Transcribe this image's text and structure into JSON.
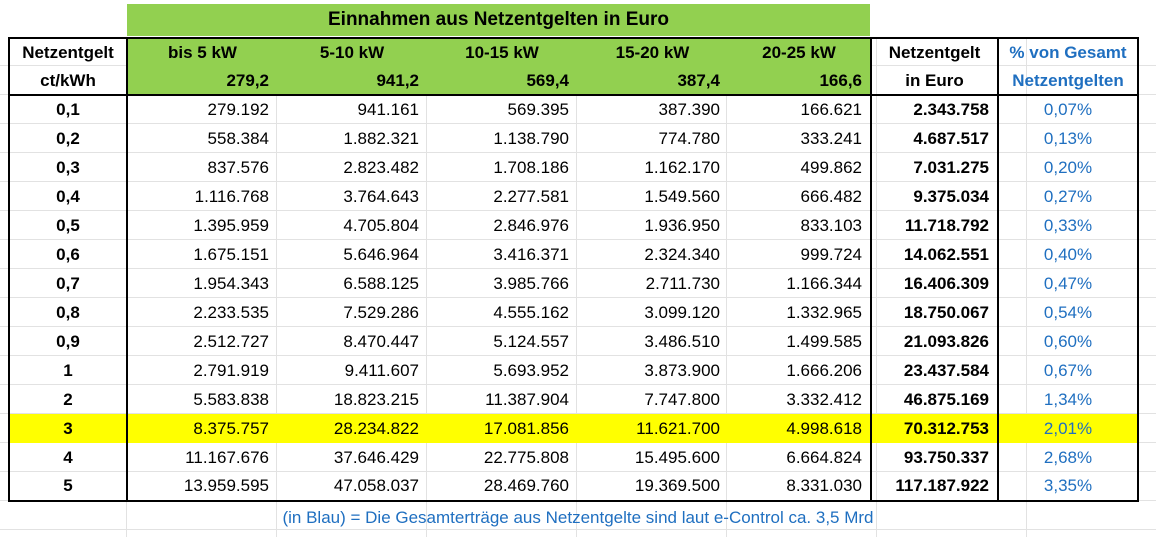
{
  "title": "Einnahmen aus Netzentgelten in Euro",
  "header": {
    "col1_line1": "Netzentgelt",
    "col1_line2": "ct/kWh",
    "groups": [
      {
        "label": "bis 5 kW",
        "value": "279,2"
      },
      {
        "label": "5-10 kW",
        "value": "941,2"
      },
      {
        "label": "10-15 kW",
        "value": "569,4"
      },
      {
        "label": "15-20 kW",
        "value": "387,4"
      },
      {
        "label": "20-25 kW",
        "value": "166,6"
      }
    ],
    "total_line1": "Netzentgelt",
    "total_line2": "in Euro",
    "pct_line1": "% von Gesamt",
    "pct_line2": "Netzentgelten"
  },
  "rows": [
    {
      "rate": "0,1",
      "v": [
        "279.192",
        "941.161",
        "569.395",
        "387.390",
        "166.621"
      ],
      "total": "2.343.758",
      "pct": "0,07%"
    },
    {
      "rate": "0,2",
      "v": [
        "558.384",
        "1.882.321",
        "1.138.790",
        "774.780",
        "333.241"
      ],
      "total": "4.687.517",
      "pct": "0,13%"
    },
    {
      "rate": "0,3",
      "v": [
        "837.576",
        "2.823.482",
        "1.708.186",
        "1.162.170",
        "499.862"
      ],
      "total": "7.031.275",
      "pct": "0,20%"
    },
    {
      "rate": "0,4",
      "v": [
        "1.116.768",
        "3.764.643",
        "2.277.581",
        "1.549.560",
        "666.482"
      ],
      "total": "9.375.034",
      "pct": "0,27%"
    },
    {
      "rate": "0,5",
      "v": [
        "1.395.959",
        "4.705.804",
        "2.846.976",
        "1.936.950",
        "833.103"
      ],
      "total": "11.718.792",
      "pct": "0,33%"
    },
    {
      "rate": "0,6",
      "v": [
        "1.675.151",
        "5.646.964",
        "3.416.371",
        "2.324.340",
        "999.724"
      ],
      "total": "14.062.551",
      "pct": "0,40%"
    },
    {
      "rate": "0,7",
      "v": [
        "1.954.343",
        "6.588.125",
        "3.985.766",
        "2.711.730",
        "1.166.344"
      ],
      "total": "16.406.309",
      "pct": "0,47%"
    },
    {
      "rate": "0,8",
      "v": [
        "2.233.535",
        "7.529.286",
        "4.555.162",
        "3.099.120",
        "1.332.965"
      ],
      "total": "18.750.067",
      "pct": "0,54%"
    },
    {
      "rate": "0,9",
      "v": [
        "2.512.727",
        "8.470.447",
        "5.124.557",
        "3.486.510",
        "1.499.585"
      ],
      "total": "21.093.826",
      "pct": "0,60%"
    },
    {
      "rate": "1",
      "v": [
        "2.791.919",
        "9.411.607",
        "5.693.952",
        "3.873.900",
        "1.666.206"
      ],
      "total": "23.437.584",
      "pct": "0,67%"
    },
    {
      "rate": "2",
      "v": [
        "5.583.838",
        "18.823.215",
        "11.387.904",
        "7.747.800",
        "3.332.412"
      ],
      "total": "46.875.169",
      "pct": "1,34%"
    },
    {
      "rate": "3",
      "v": [
        "8.375.757",
        "28.234.822",
        "17.081.856",
        "11.621.700",
        "4.998.618"
      ],
      "total": "70.312.753",
      "pct": "2,01%",
      "highlight": true
    },
    {
      "rate": "4",
      "v": [
        "11.167.676",
        "37.646.429",
        "22.775.808",
        "15.495.600",
        "6.664.824"
      ],
      "total": "93.750.337",
      "pct": "2,68%"
    },
    {
      "rate": "5",
      "v": [
        "13.959.595",
        "47.058.037",
        "28.469.760",
        "19.369.500",
        "8.331.030"
      ],
      "total": "117.187.922",
      "pct": "3,35%"
    }
  ],
  "footer": "(in Blau) = Die Gesamterträge aus Netzentgelte sind laut e-Control ca. 3,5 Mrd",
  "colors": {
    "green": "#92d050",
    "yellow": "#ffff00",
    "blue": "#1f6fc0"
  }
}
